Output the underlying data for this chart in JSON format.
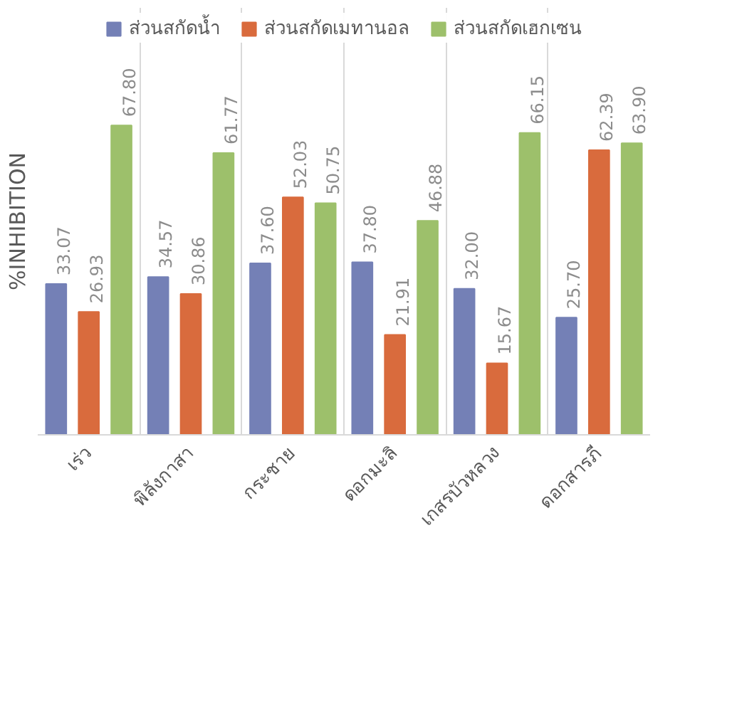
{
  "chart_data": {
    "type": "bar",
    "ylabel": "%INHIBITION",
    "categories": [
      "เร่ว",
      "พิลังกาสา",
      "กระชาย",
      "ดอกมะลิ",
      "เกสรบัวหลวง",
      "ดอกสารภี"
    ],
    "series": [
      {
        "name": "ส่วนสกัดน้ำ",
        "color": "#7480b6",
        "values": [
          33.07,
          34.57,
          37.6,
          37.8,
          32.0,
          25.7
        ],
        "value_labels": [
          "33.07",
          "34.57",
          "37.60",
          "37.80",
          "32.00",
          "25.70"
        ]
      },
      {
        "name": "ส่วนสกัดเมทานอล",
        "color": "#d96b3d",
        "values": [
          26.93,
          30.86,
          52.03,
          21.91,
          15.67,
          62.39
        ],
        "value_labels": [
          "26.93",
          "30.86",
          "52.03",
          "21.91",
          "15.67",
          "62.39"
        ]
      },
      {
        "name": "ส่วนสกัดเฮกเซน",
        "color": "#9dc06b",
        "values": [
          67.8,
          61.77,
          50.75,
          46.88,
          66.15,
          63.9
        ],
        "value_labels": [
          "67.80",
          "61.77",
          "50.75",
          "46.88",
          "66.15",
          "63.90"
        ]
      }
    ],
    "grid": "x",
    "legend": "top"
  }
}
